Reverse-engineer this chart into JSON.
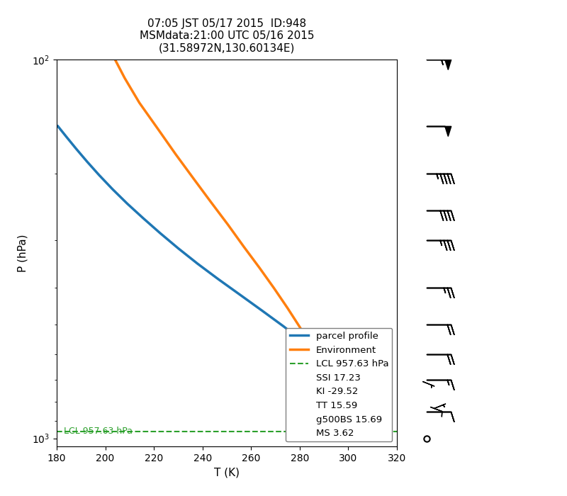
{
  "title": "07:05 JST 05/17 2015  ID:948\nMSMdata:21:00 UTC 05/16 2015\n(31.58972N,130.60134E)",
  "xlabel": "T (K)",
  "ylabel": "P (hPa)",
  "xlim": [
    180,
    320
  ],
  "ylim_log": [
    100,
    1050
  ],
  "xticks": [
    180,
    200,
    220,
    240,
    260,
    280,
    300,
    320
  ],
  "yticks": [
    100,
    200,
    300,
    400,
    500,
    600,
    700,
    800,
    900,
    1000
  ],
  "parcel_T": [
    180.5,
    184.0,
    188.0,
    192.5,
    197.5,
    203.0,
    209.0,
    215.5,
    222.5,
    230.0,
    238.0,
    246.5,
    255.5,
    264.5,
    273.5,
    282.0,
    290.0,
    292.5
  ],
  "parcel_P": [
    150,
    160,
    172,
    186,
    202,
    220,
    240,
    262,
    287,
    315,
    346,
    380,
    418,
    460,
    507,
    560,
    925,
    1000
  ],
  "env_T": [
    204.0,
    208.0,
    214.0,
    221.5,
    229.0,
    236.5,
    243.5,
    250.5,
    257.0,
    263.5,
    269.5,
    275.0,
    280.0,
    284.5,
    288.5,
    291.5,
    293.0
  ],
  "env_P": [
    100,
    112,
    130,
    152,
    178,
    207,
    238,
    273,
    312,
    355,
    402,
    453,
    508,
    568,
    850,
    960,
    1000
  ],
  "lcl_pressure": 957.63,
  "parcel_color": "#1f77b4",
  "env_color": "#ff7f0e",
  "lcl_color": "#2ca02c",
  "parcel_linewidth": 2.5,
  "env_linewidth": 2.5,
  "background_color": "#ffffff",
  "title_fontsize": 11,
  "wind_levels_p": [
    100,
    150,
    200,
    250,
    300,
    400,
    500,
    600,
    700,
    850,
    1000
  ],
  "wind_u": [
    -55,
    -50,
    -45,
    -40,
    -35,
    -25,
    -20,
    -20,
    -15,
    -10,
    0
  ],
  "wind_v": [
    0,
    0,
    0,
    0,
    0,
    0,
    0,
    0,
    0,
    0,
    0
  ]
}
